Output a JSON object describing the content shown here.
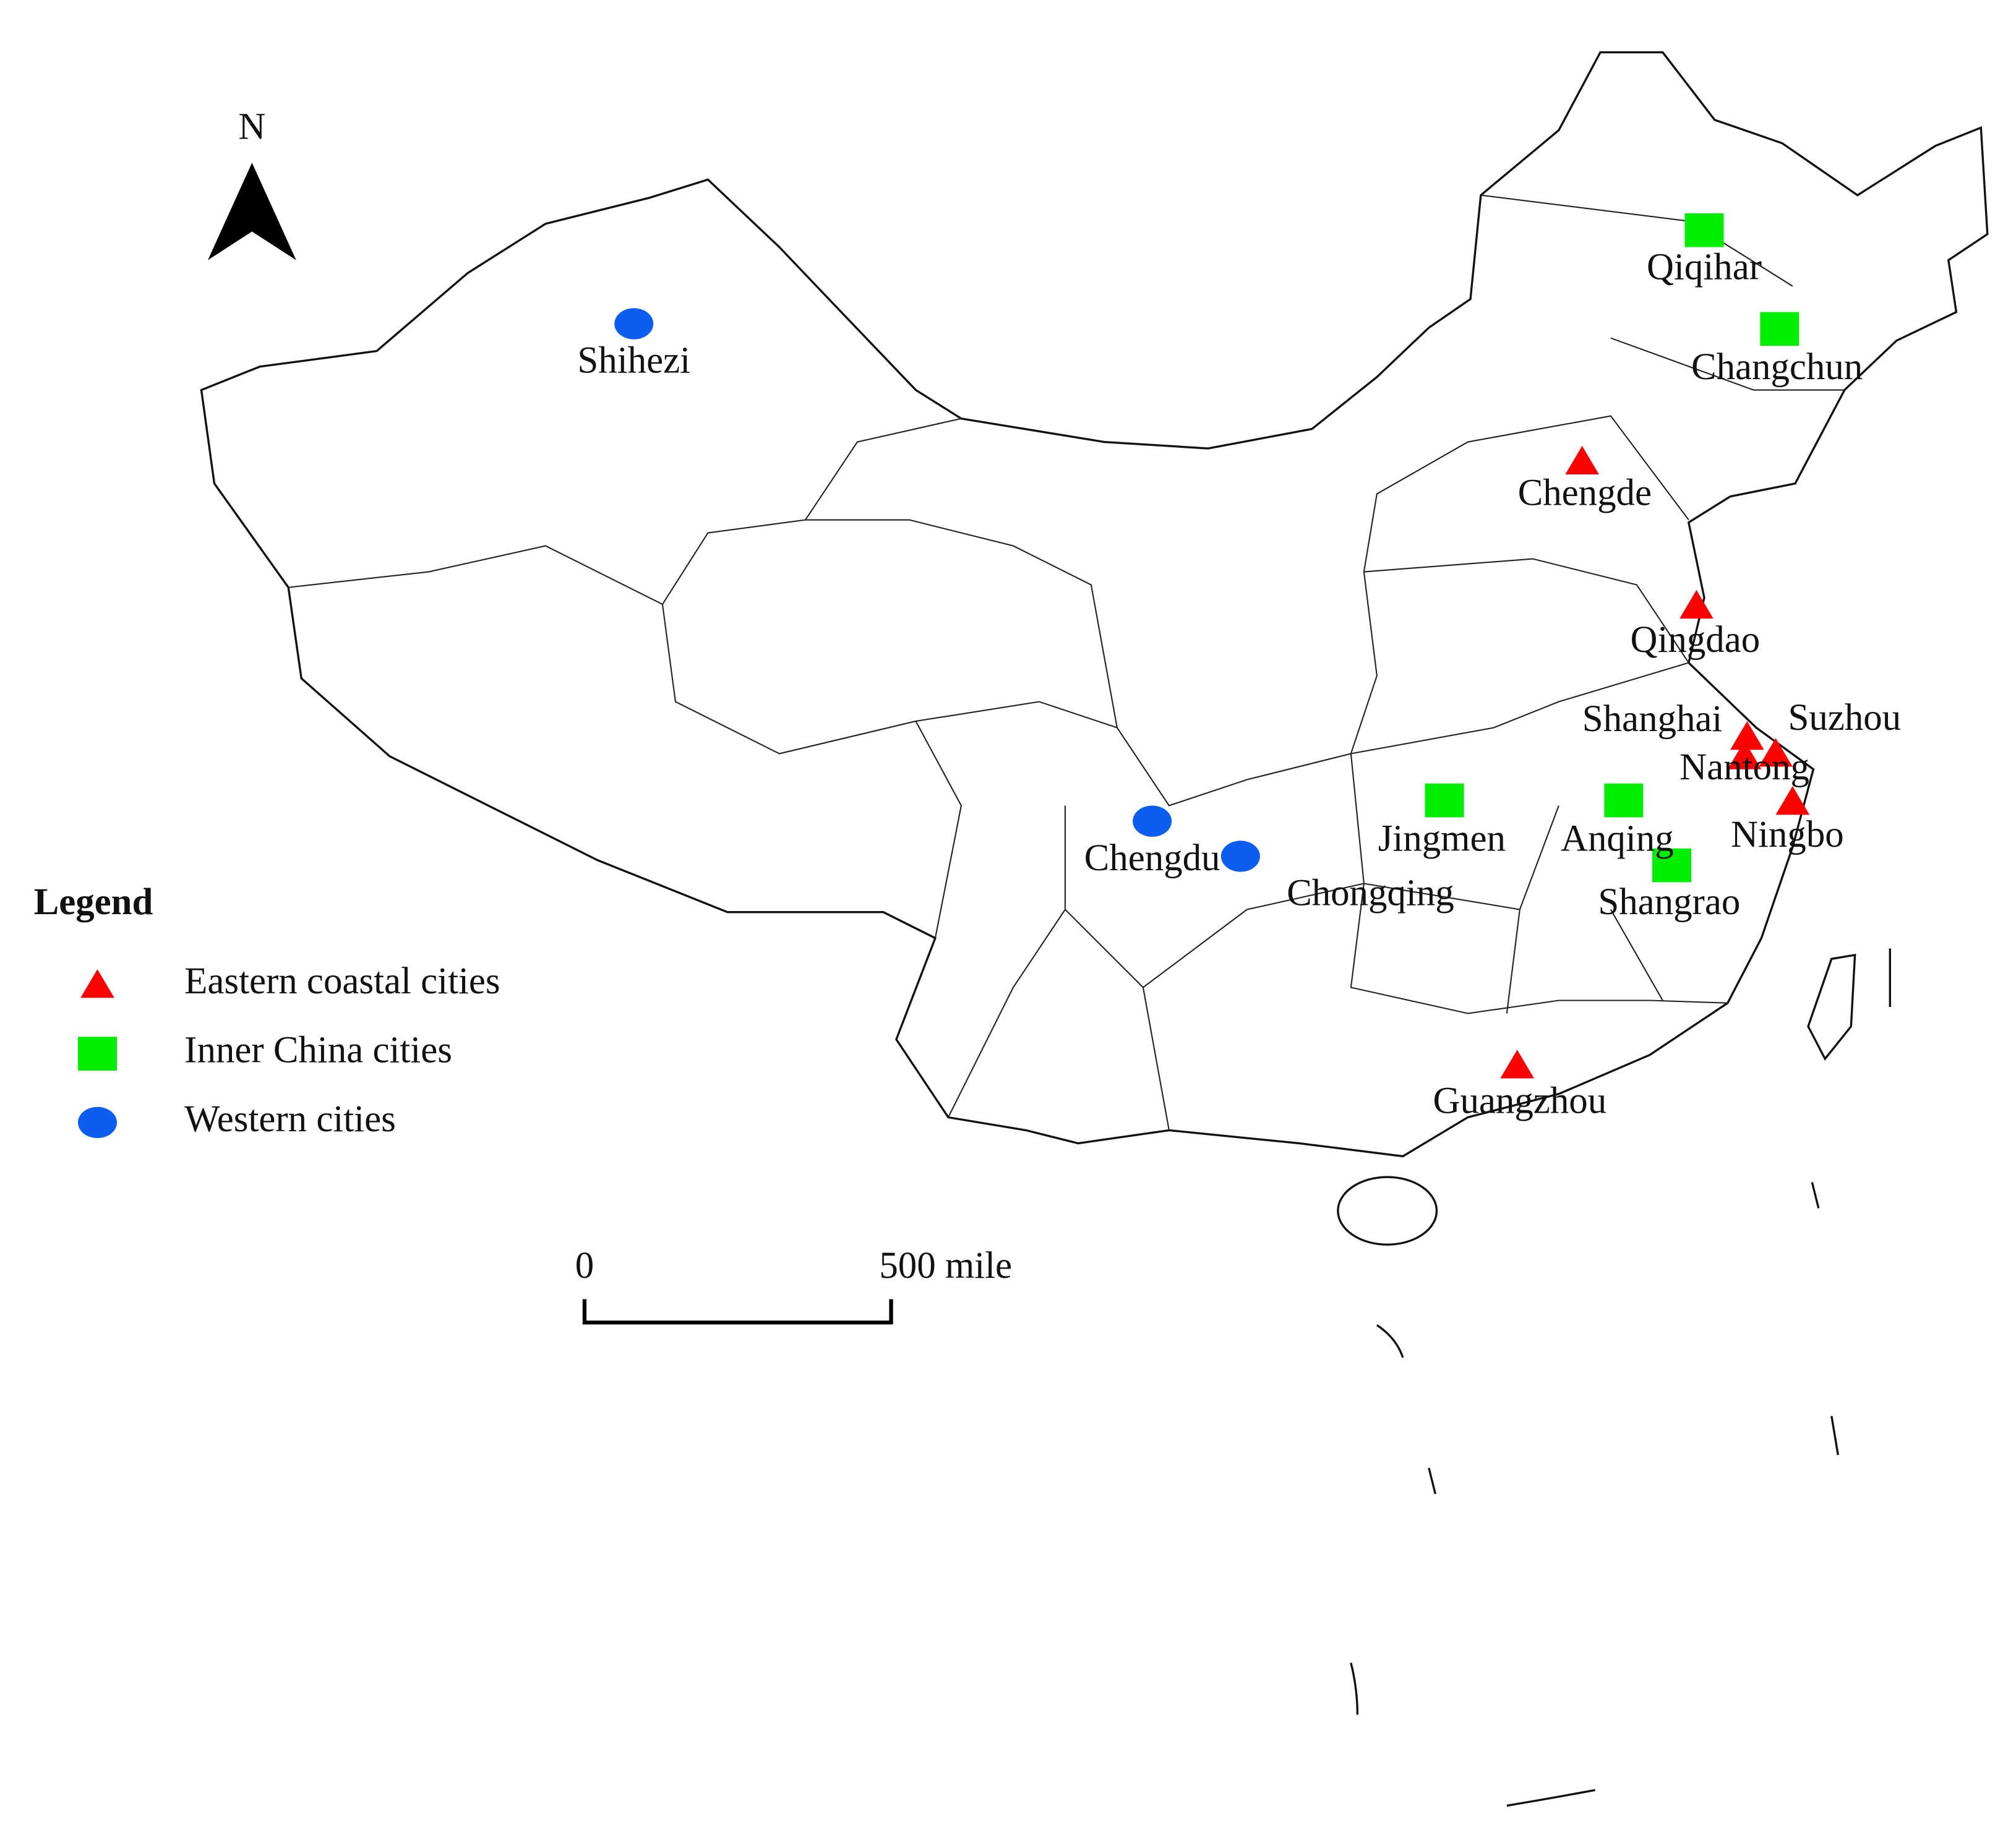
{
  "north_label": "N",
  "legend": {
    "title": "Legend",
    "items": [
      {
        "name": "Eastern coastal cities",
        "color": "#ff0000",
        "shape": "triangle"
      },
      {
        "name": "Inner China cities",
        "color": "#00ee00",
        "shape": "square"
      },
      {
        "name": "Western cities",
        "color": "#0b5ef0",
        "shape": "circle"
      }
    ]
  },
  "cities": [
    {
      "name": "Shihezi",
      "group": 2
    },
    {
      "name": "Qiqihar",
      "group": 1
    },
    {
      "name": "Changchun",
      "group": 1
    },
    {
      "name": "Chengde",
      "group": 0
    },
    {
      "name": "Qingdao",
      "group": 0
    },
    {
      "name": "Shanghai",
      "group": 0
    },
    {
      "name": "Suzhou",
      "group": 0
    },
    {
      "name": "Nantong",
      "group": 0
    },
    {
      "name": "Ningbo",
      "group": 0
    },
    {
      "name": "Jingmen",
      "group": 1
    },
    {
      "name": "Anqing",
      "group": 1
    },
    {
      "name": "Chengdu",
      "group": 2
    },
    {
      "name": "Chongqing",
      "group": 2
    },
    {
      "name": "Shangrao",
      "group": 1
    },
    {
      "name": "Guangzhou",
      "group": 0
    }
  ],
  "scale_bar": {
    "labels": [
      "0",
      "500 mile"
    ]
  }
}
